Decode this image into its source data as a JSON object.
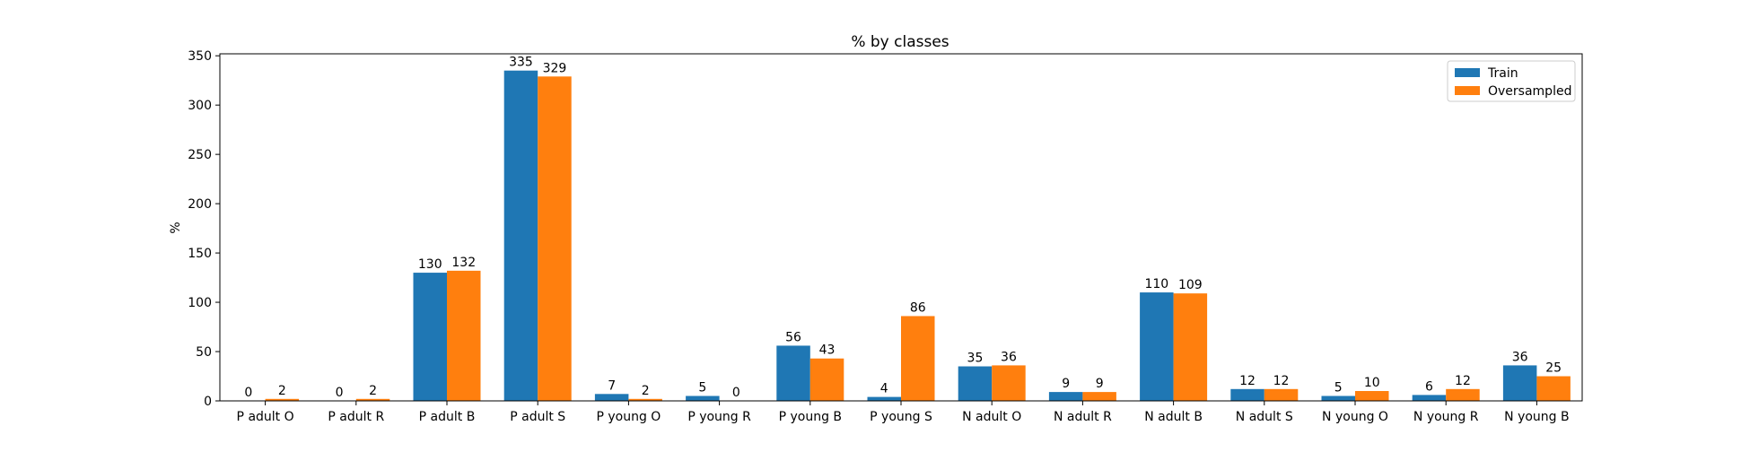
{
  "chart_data": {
    "type": "bar",
    "title": "% by classes",
    "xlabel": "",
    "ylabel": "%",
    "ylim": [
      0,
      352
    ],
    "yticks": [
      0,
      50,
      100,
      150,
      200,
      250,
      300,
      350
    ],
    "grid": false,
    "legend_position": "top-right",
    "categories": [
      "P adult O",
      "P adult R",
      "P adult B",
      "P adult S",
      "P young O",
      "P young R",
      "P young B",
      "P young S",
      "N adult O",
      "N adult R",
      "N adult B",
      "N adult S",
      "N young O",
      "N young R",
      "N young B"
    ],
    "series": [
      {
        "name": "Train",
        "color": "#1f77b4",
        "values": [
          0,
          0,
          130,
          335,
          7,
          5,
          56,
          4,
          35,
          9,
          110,
          12,
          5,
          6,
          36
        ]
      },
      {
        "name": "Oversampled",
        "color": "#ff7f0e",
        "values": [
          2,
          2,
          132,
          329,
          2,
          0,
          43,
          86,
          36,
          9,
          109,
          12,
          10,
          12,
          25
        ]
      }
    ]
  }
}
